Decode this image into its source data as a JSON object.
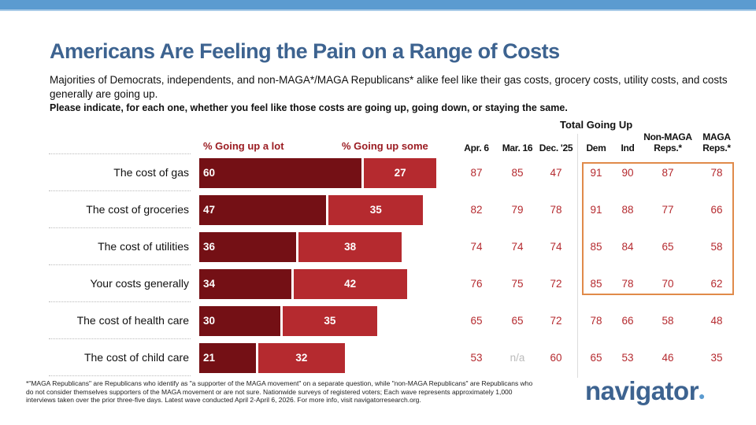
{
  "title": "Americans Are Feeling the Pain on a Range of Costs",
  "subtitle": "Majorities of Democrats, independents, and non-MAGA*/MAGA Republicans* alike feel like their gas costs, grocery costs, utility costs, and costs generally are going up.",
  "question": "Please indicate, for each one, whether you feel like those costs are going up, going down, or staying the same.",
  "group_header": "Total Going Up",
  "legend": {
    "lot": "% Going up a lot",
    "some": "% Going up some"
  },
  "columns": [
    "Apr. 6",
    "Mar. 16",
    "Dec. '25",
    "Dem",
    "Ind",
    "Non-MAGA Reps.*",
    "MAGA Reps.*"
  ],
  "colors": {
    "lot": "#741015",
    "some": "#b52a2f",
    "title": "#3d6390",
    "highlight_box": "#e08a4a",
    "band": "#5b9bd0"
  },
  "chart_data": {
    "type": "bar",
    "stacked": true,
    "orientation": "horizontal",
    "categories": [
      "The cost of gas",
      "The cost of groceries",
      "The cost of utilities",
      "Your costs generally",
      "The cost of health care",
      "The cost of child care"
    ],
    "series": [
      {
        "name": "% Going up a lot",
        "values": [
          60,
          47,
          36,
          34,
          30,
          21
        ]
      },
      {
        "name": "% Going up some",
        "values": [
          27,
          35,
          38,
          42,
          35,
          32
        ]
      }
    ],
    "table": [
      [
        "87",
        "85",
        "47",
        "91",
        "90",
        "87",
        "78"
      ],
      [
        "82",
        "79",
        "78",
        "91",
        "88",
        "77",
        "66"
      ],
      [
        "74",
        "74",
        "74",
        "85",
        "84",
        "65",
        "58"
      ],
      [
        "76",
        "75",
        "72",
        "85",
        "78",
        "70",
        "62"
      ],
      [
        "65",
        "65",
        "72",
        "78",
        "66",
        "58",
        "48"
      ],
      [
        "53",
        "n/a",
        "60",
        "65",
        "53",
        "46",
        "35"
      ]
    ],
    "highlighted_rows": [
      0,
      1,
      2,
      3
    ]
  },
  "footnote": "*\"MAGA Republicans\" are Republicans who identify as \"a supporter of the MAGA movement\" on a separate question, while \"non-MAGA Republicans\" are Republicans who do not consider themselves supporters of the MAGA movement or are not sure. Nationwide surveys of registered voters; Each wave represents approximately 1,000 interviews taken over the prior three-five days. Latest wave conducted April 2-April 6, 2026. For more info, visit navigatorresearch.org.",
  "logo": "navigator"
}
